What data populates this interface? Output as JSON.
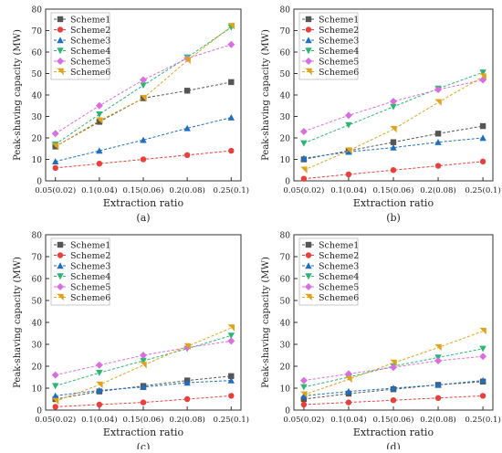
{
  "colors": {
    "Scheme1": "#555555",
    "Scheme2": "#e8403a",
    "Scheme3": "#1f6fc0",
    "Scheme4": "#2bb673",
    "Scheme5": "#d96ee0",
    "Scheme6": "#e0a31c"
  },
  "chart_data": [
    {
      "type": "line",
      "panel_label": "(a)",
      "xlabel": "Extraction ratio",
      "ylabel": "Peak-shaving capacity (MW)",
      "categories": [
        "0.05(0.02)",
        "0.1(0.04)",
        "0.15(0.06)",
        "0.2(0.08)",
        "0.25(0.1)"
      ],
      "ylim": [
        0,
        80
      ],
      "yticks": [
        0,
        10,
        20,
        30,
        40,
        50,
        60,
        70,
        80
      ],
      "legend_position": "top-left",
      "series": [
        {
          "name": "Scheme1",
          "values": [
            16.0,
            27.5,
            38.5,
            42.0,
            46.0
          ]
        },
        {
          "name": "Scheme2",
          "values": [
            6.0,
            8.0,
            10.0,
            12.0,
            14.0
          ]
        },
        {
          "name": "Scheme3",
          "values": [
            9.0,
            14.0,
            19.0,
            24.5,
            29.5
          ]
        },
        {
          "name": "Scheme4",
          "values": [
            17.0,
            31.0,
            44.5,
            57.5,
            71.5
          ]
        },
        {
          "name": "Scheme5",
          "values": [
            22.0,
            35.0,
            47.0,
            57.0,
            63.5
          ]
        },
        {
          "name": "Scheme6",
          "values": [
            16.0,
            28.0,
            38.5,
            56.0,
            72.0
          ]
        }
      ]
    },
    {
      "type": "line",
      "panel_label": "(b)",
      "xlabel": "Extraction ratio",
      "ylabel": "Peak-shaving capacity (MW)",
      "categories": [
        "0.05(0.02)",
        "0.1(0.04)",
        "0.15(0.06)",
        "0.2(0.08)",
        "0.25(0.1)"
      ],
      "ylim": [
        0,
        80
      ],
      "yticks": [
        0,
        10,
        20,
        30,
        40,
        50,
        60,
        70,
        80
      ],
      "legend_position": "top-left",
      "series": [
        {
          "name": "Scheme1",
          "values": [
            10.0,
            14.0,
            18.0,
            22.0,
            25.5
          ]
        },
        {
          "name": "Scheme2",
          "values": [
            1.0,
            3.0,
            5.0,
            7.0,
            9.0
          ]
        },
        {
          "name": "Scheme3",
          "values": [
            10.5,
            13.5,
            15.5,
            18.0,
            20.0
          ]
        },
        {
          "name": "Scheme4",
          "values": [
            17.5,
            26.0,
            34.5,
            43.0,
            50.5
          ]
        },
        {
          "name": "Scheme5",
          "values": [
            23.0,
            30.5,
            37.0,
            42.5,
            47.0
          ]
        },
        {
          "name": "Scheme6",
          "values": [
            5.0,
            14.0,
            24.0,
            36.5,
            48.5
          ]
        }
      ]
    },
    {
      "type": "line",
      "panel_label": "(c)",
      "xlabel": "Extraction ratio",
      "ylabel": "Peak-shaving capacity (MW)",
      "categories": [
        "0.05(0.02)",
        "0.1(0.04)",
        "0.15(0.06)",
        "0.2(0.08)",
        "0.25(0.1)"
      ],
      "ylim": [
        0,
        80
      ],
      "yticks": [
        0,
        10,
        20,
        30,
        40,
        50,
        60,
        70,
        80
      ],
      "legend_position": "top-left",
      "series": [
        {
          "name": "Scheme1",
          "values": [
            5.0,
            8.5,
            11.0,
            13.5,
            15.5
          ]
        },
        {
          "name": "Scheme2",
          "values": [
            1.5,
            2.5,
            3.5,
            5.0,
            6.5
          ]
        },
        {
          "name": "Scheme3",
          "values": [
            6.5,
            9.0,
            10.5,
            12.5,
            13.5
          ]
        },
        {
          "name": "Scheme4",
          "values": [
            11.0,
            17.0,
            22.5,
            28.0,
            34.0
          ]
        },
        {
          "name": "Scheme5",
          "values": [
            16.0,
            20.5,
            25.0,
            28.5,
            31.5
          ]
        },
        {
          "name": "Scheme6",
          "values": [
            4.0,
            11.5,
            20.5,
            29.0,
            37.5
          ]
        }
      ]
    },
    {
      "type": "line",
      "panel_label": "(d)",
      "xlabel": "Extraction ratio",
      "ylabel": "Peak-shaving capacity (MW)",
      "categories": [
        "0.05(0.02)",
        "0.1(0.04)",
        "0.15(0.06)",
        "0.2(0.08)",
        "0.25(0.1)"
      ],
      "ylim": [
        0,
        80
      ],
      "yticks": [
        0,
        10,
        20,
        30,
        40,
        50,
        60,
        70,
        80
      ],
      "legend_position": "top-left",
      "series": [
        {
          "name": "Scheme1",
          "values": [
            5.0,
            7.5,
            9.5,
            11.5,
            13.0
          ]
        },
        {
          "name": "Scheme2",
          "values": [
            2.5,
            3.5,
            4.5,
            5.5,
            6.5
          ]
        },
        {
          "name": "Scheme3",
          "values": [
            6.5,
            8.5,
            10.0,
            11.5,
            13.5
          ]
        },
        {
          "name": "Scheme4",
          "values": [
            10.5,
            15.0,
            20.0,
            24.0,
            28.0
          ]
        },
        {
          "name": "Scheme5",
          "values": [
            13.5,
            16.5,
            19.5,
            22.5,
            24.5
          ]
        },
        {
          "name": "Scheme6",
          "values": [
            7.0,
            14.0,
            21.5,
            28.5,
            36.0
          ]
        }
      ]
    }
  ]
}
